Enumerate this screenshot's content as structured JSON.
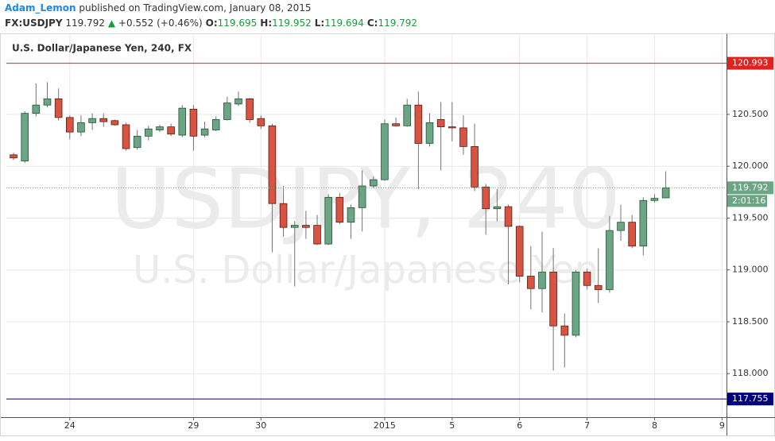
{
  "header": {
    "author": "Adam_Lemon",
    "published": "published on TradingView.com, January 08, 2015",
    "symbol": "FX:USDJPY",
    "last": "119.792",
    "change_arrow": "▲",
    "change": "+0.552 (+0.46%)",
    "ohlc": [
      {
        "label": "O:",
        "value": "119.695"
      },
      {
        "label": "H:",
        "value": "119.952"
      },
      {
        "label": "L:",
        "value": "119.694"
      },
      {
        "label": "C:",
        "value": "119.792"
      }
    ]
  },
  "chart_data": {
    "type": "candlestick",
    "title": "U.S. Dollar/Japanese Yen, 240, FX",
    "watermark": [
      "USDJPY, 240",
      "U.S. Dollar/Japanese Yen"
    ],
    "x": [
      0,
      1,
      2,
      3,
      4,
      5,
      6,
      7,
      8,
      9,
      10,
      11,
      12,
      13,
      14,
      15,
      16,
      17,
      18,
      19,
      20,
      21,
      22,
      23,
      24,
      25,
      26,
      27,
      28,
      29,
      30,
      31,
      32,
      33,
      34,
      35,
      36,
      37,
      38,
      39,
      40,
      41,
      42,
      43,
      44,
      45,
      46,
      47,
      48,
      49,
      50,
      51,
      52,
      53,
      54,
      55,
      56,
      57,
      58
    ],
    "open": [
      120.11,
      120.05,
      120.51,
      120.59,
      120.65,
      120.47,
      120.33,
      120.42,
      120.46,
      120.44,
      120.4,
      120.18,
      120.29,
      120.35,
      120.38,
      120.3,
      120.55,
      120.3,
      120.35,
      120.45,
      120.6,
      120.65,
      120.46,
      120.39,
      119.64,
      119.41,
      119.43,
      119.43,
      119.25,
      119.7,
      119.46,
      119.6,
      119.81,
      119.87,
      120.41,
      120.39,
      120.59,
      120.22,
      120.45,
      120.38,
      120.37,
      120.19,
      119.8,
      119.59,
      119.61,
      119.42,
      118.94,
      118.82,
      118.98,
      118.46,
      118.37,
      118.98,
      118.85,
      118.81,
      119.38,
      119.46,
      119.23,
      119.67,
      119.695
    ],
    "high": [
      120.13,
      120.53,
      120.8,
      120.81,
      120.75,
      120.49,
      120.49,
      120.51,
      120.51,
      120.45,
      120.42,
      120.35,
      120.39,
      120.4,
      120.41,
      120.59,
      120.59,
      120.43,
      120.48,
      120.67,
      120.72,
      120.66,
      120.49,
      120.41,
      119.81,
      119.47,
      119.57,
      119.53,
      119.73,
      119.74,
      119.63,
      119.96,
      119.9,
      120.45,
      120.47,
      120.65,
      120.72,
      120.51,
      120.62,
      120.62,
      120.49,
      120.41,
      119.83,
      119.78,
      119.63,
      119.43,
      119.23,
      119.37,
      119.21,
      118.58,
      119.0,
      119.01,
      119.21,
      119.52,
      119.63,
      119.53,
      119.7,
      119.73,
      119.952
    ],
    "low": [
      120.06,
      120.03,
      120.48,
      120.57,
      120.44,
      120.26,
      120.29,
      120.35,
      120.38,
      120.39,
      120.15,
      120.16,
      120.25,
      120.33,
      120.29,
      120.28,
      120.15,
      120.28,
      120.34,
      120.44,
      120.58,
      120.42,
      120.36,
      119.17,
      119.32,
      118.84,
      119.3,
      119.24,
      119.24,
      119.44,
      119.3,
      119.37,
      119.79,
      119.86,
      120.38,
      120.38,
      119.78,
      120.19,
      119.96,
      120.24,
      120.11,
      119.76,
      119.34,
      119.47,
      118.86,
      118.88,
      118.62,
      118.59,
      118.03,
      118.06,
      118.35,
      118.81,
      118.68,
      118.78,
      119.28,
      119.21,
      119.14,
      119.65,
      119.694
    ],
    "close": [
      120.08,
      120.51,
      120.59,
      120.65,
      120.47,
      120.33,
      120.42,
      120.46,
      120.43,
      120.4,
      120.17,
      120.29,
      120.36,
      120.38,
      120.31,
      120.56,
      120.29,
      120.36,
      120.45,
      120.61,
      120.65,
      120.45,
      120.39,
      119.64,
      119.41,
      119.43,
      119.41,
      119.25,
      119.7,
      119.46,
      119.6,
      119.81,
      119.87,
      120.41,
      120.39,
      120.59,
      120.22,
      120.42,
      120.38,
      120.37,
      120.19,
      119.8,
      119.59,
      119.61,
      119.42,
      118.94,
      118.82,
      118.98,
      118.46,
      118.37,
      118.98,
      118.85,
      118.81,
      119.38,
      119.46,
      119.23,
      119.67,
      119.69,
      119.792
    ],
    "up_color": "#6ba583",
    "up_border": "#225437",
    "down_color": "#d75442",
    "down_border": "#5b1a13",
    "wick_color": "#737375",
    "xlim": [
      -0.64,
      63.4
    ],
    "xticks": [
      {
        "value": 5,
        "label": "24"
      },
      {
        "value": 16,
        "label": "29"
      },
      {
        "value": 22,
        "label": "30"
      },
      {
        "value": 33,
        "label": "2015"
      },
      {
        "value": 39,
        "label": "5"
      },
      {
        "value": 45,
        "label": "6"
      },
      {
        "value": 51,
        "label": "7"
      },
      {
        "value": 57,
        "label": "8"
      },
      {
        "value": 63,
        "label": "9"
      }
    ],
    "ylim": [
      117.58,
      121.266
    ],
    "yticks": [
      {
        "value": 118,
        "label": "118.000"
      },
      {
        "value": 118.5,
        "label": "118.500"
      },
      {
        "value": 119,
        "label": "119.000"
      },
      {
        "value": 119.5,
        "label": "119.500"
      },
      {
        "value": 120,
        "label": "120.000"
      },
      {
        "value": 120.5,
        "label": "120.500"
      }
    ],
    "grid": true,
    "price_lines": [
      {
        "value": 120.993,
        "color": "#e3211e"
      },
      {
        "value": 117.755,
        "color": "#000080"
      }
    ],
    "last_price": {
      "value": 119.792,
      "color": "#6ba583",
      "countdown": "2:01:16"
    }
  }
}
